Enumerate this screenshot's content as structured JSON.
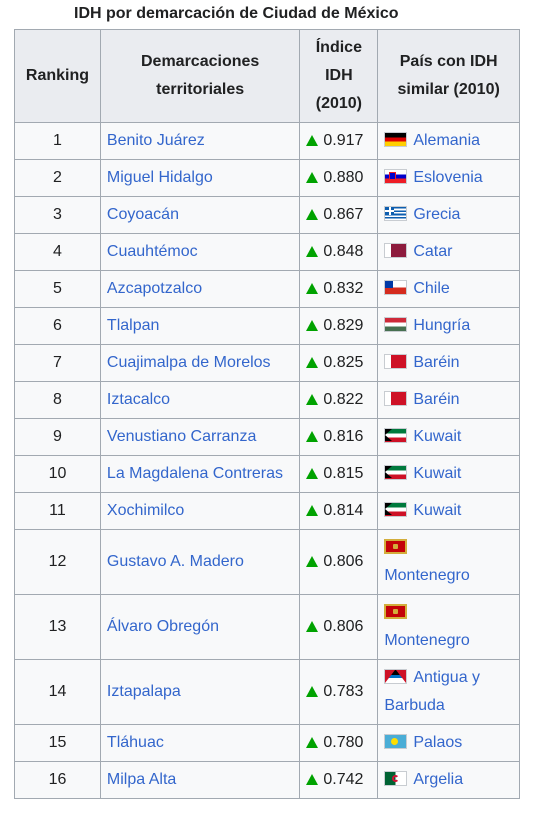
{
  "caption": "IDH por demarcación de Ciudad de México",
  "headers": {
    "ranking": "Ranking",
    "demarcaciones": "Demarcaciones territoriales",
    "indice": "Índice IDH (2010)",
    "pais": "País con IDH similar (2010)"
  },
  "trend_color": "#00a200",
  "link_color": "#3366cc",
  "rows": [
    {
      "rank": "1",
      "name": "Benito Juárez",
      "idh": "0.917",
      "country": "Alemania",
      "flag": "germany-flag-icon"
    },
    {
      "rank": "2",
      "name": "Miguel Hidalgo",
      "idh": "0.880",
      "country": "Eslovenia",
      "flag": "slovenia-flag-icon"
    },
    {
      "rank": "3",
      "name": "Coyoacán",
      "idh": "0.867",
      "country": "Grecia",
      "flag": "greece-flag-icon"
    },
    {
      "rank": "4",
      "name": "Cuauhtémoc",
      "idh": "0.848",
      "country": "Catar",
      "flag": "qatar-flag-icon"
    },
    {
      "rank": "5",
      "name": "Azcapotzalco",
      "idh": "0.832",
      "country": "Chile",
      "flag": "chile-flag-icon"
    },
    {
      "rank": "6",
      "name": "Tlalpan",
      "idh": "0.829",
      "country": "Hungría",
      "flag": "hungary-flag-icon"
    },
    {
      "rank": "7",
      "name": "Cuajimalpa de Morelos",
      "idh": "0.825",
      "country": "Baréin",
      "flag": "bahrain-flag-icon"
    },
    {
      "rank": "8",
      "name": "Iztacalco",
      "idh": "0.822",
      "country": "Baréin",
      "flag": "bahrain-flag-icon"
    },
    {
      "rank": "9",
      "name": "Venustiano Carranza",
      "idh": "0.816",
      "country": "Kuwait",
      "flag": "kuwait-flag-icon"
    },
    {
      "rank": "10",
      "name": "La Magdalena Contreras",
      "idh": "0.815",
      "country": "Kuwait",
      "flag": "kuwait-flag-icon"
    },
    {
      "rank": "11",
      "name": "Xochimilco",
      "idh": "0.814",
      "country": "Kuwait",
      "flag": "kuwait-flag-icon"
    },
    {
      "rank": "12",
      "name": "Gustavo A. Madero",
      "idh": "0.806",
      "country": "Montenegro",
      "flag": "montenegro-flag-icon"
    },
    {
      "rank": "13",
      "name": "Álvaro Obregón",
      "idh": "0.806",
      "country": "Montenegro",
      "flag": "montenegro-flag-icon"
    },
    {
      "rank": "14",
      "name": "Iztapalapa",
      "idh": "0.783",
      "country": "Antigua y Barbuda",
      "flag": "antigua-barbuda-flag-icon"
    },
    {
      "rank": "15",
      "name": "Tláhuac",
      "idh": "0.780",
      "country": "Palaos",
      "flag": "palau-flag-icon"
    },
    {
      "rank": "16",
      "name": "Milpa Alta",
      "idh": "0.742",
      "country": "Argelia",
      "flag": "algeria-flag-icon"
    }
  ]
}
